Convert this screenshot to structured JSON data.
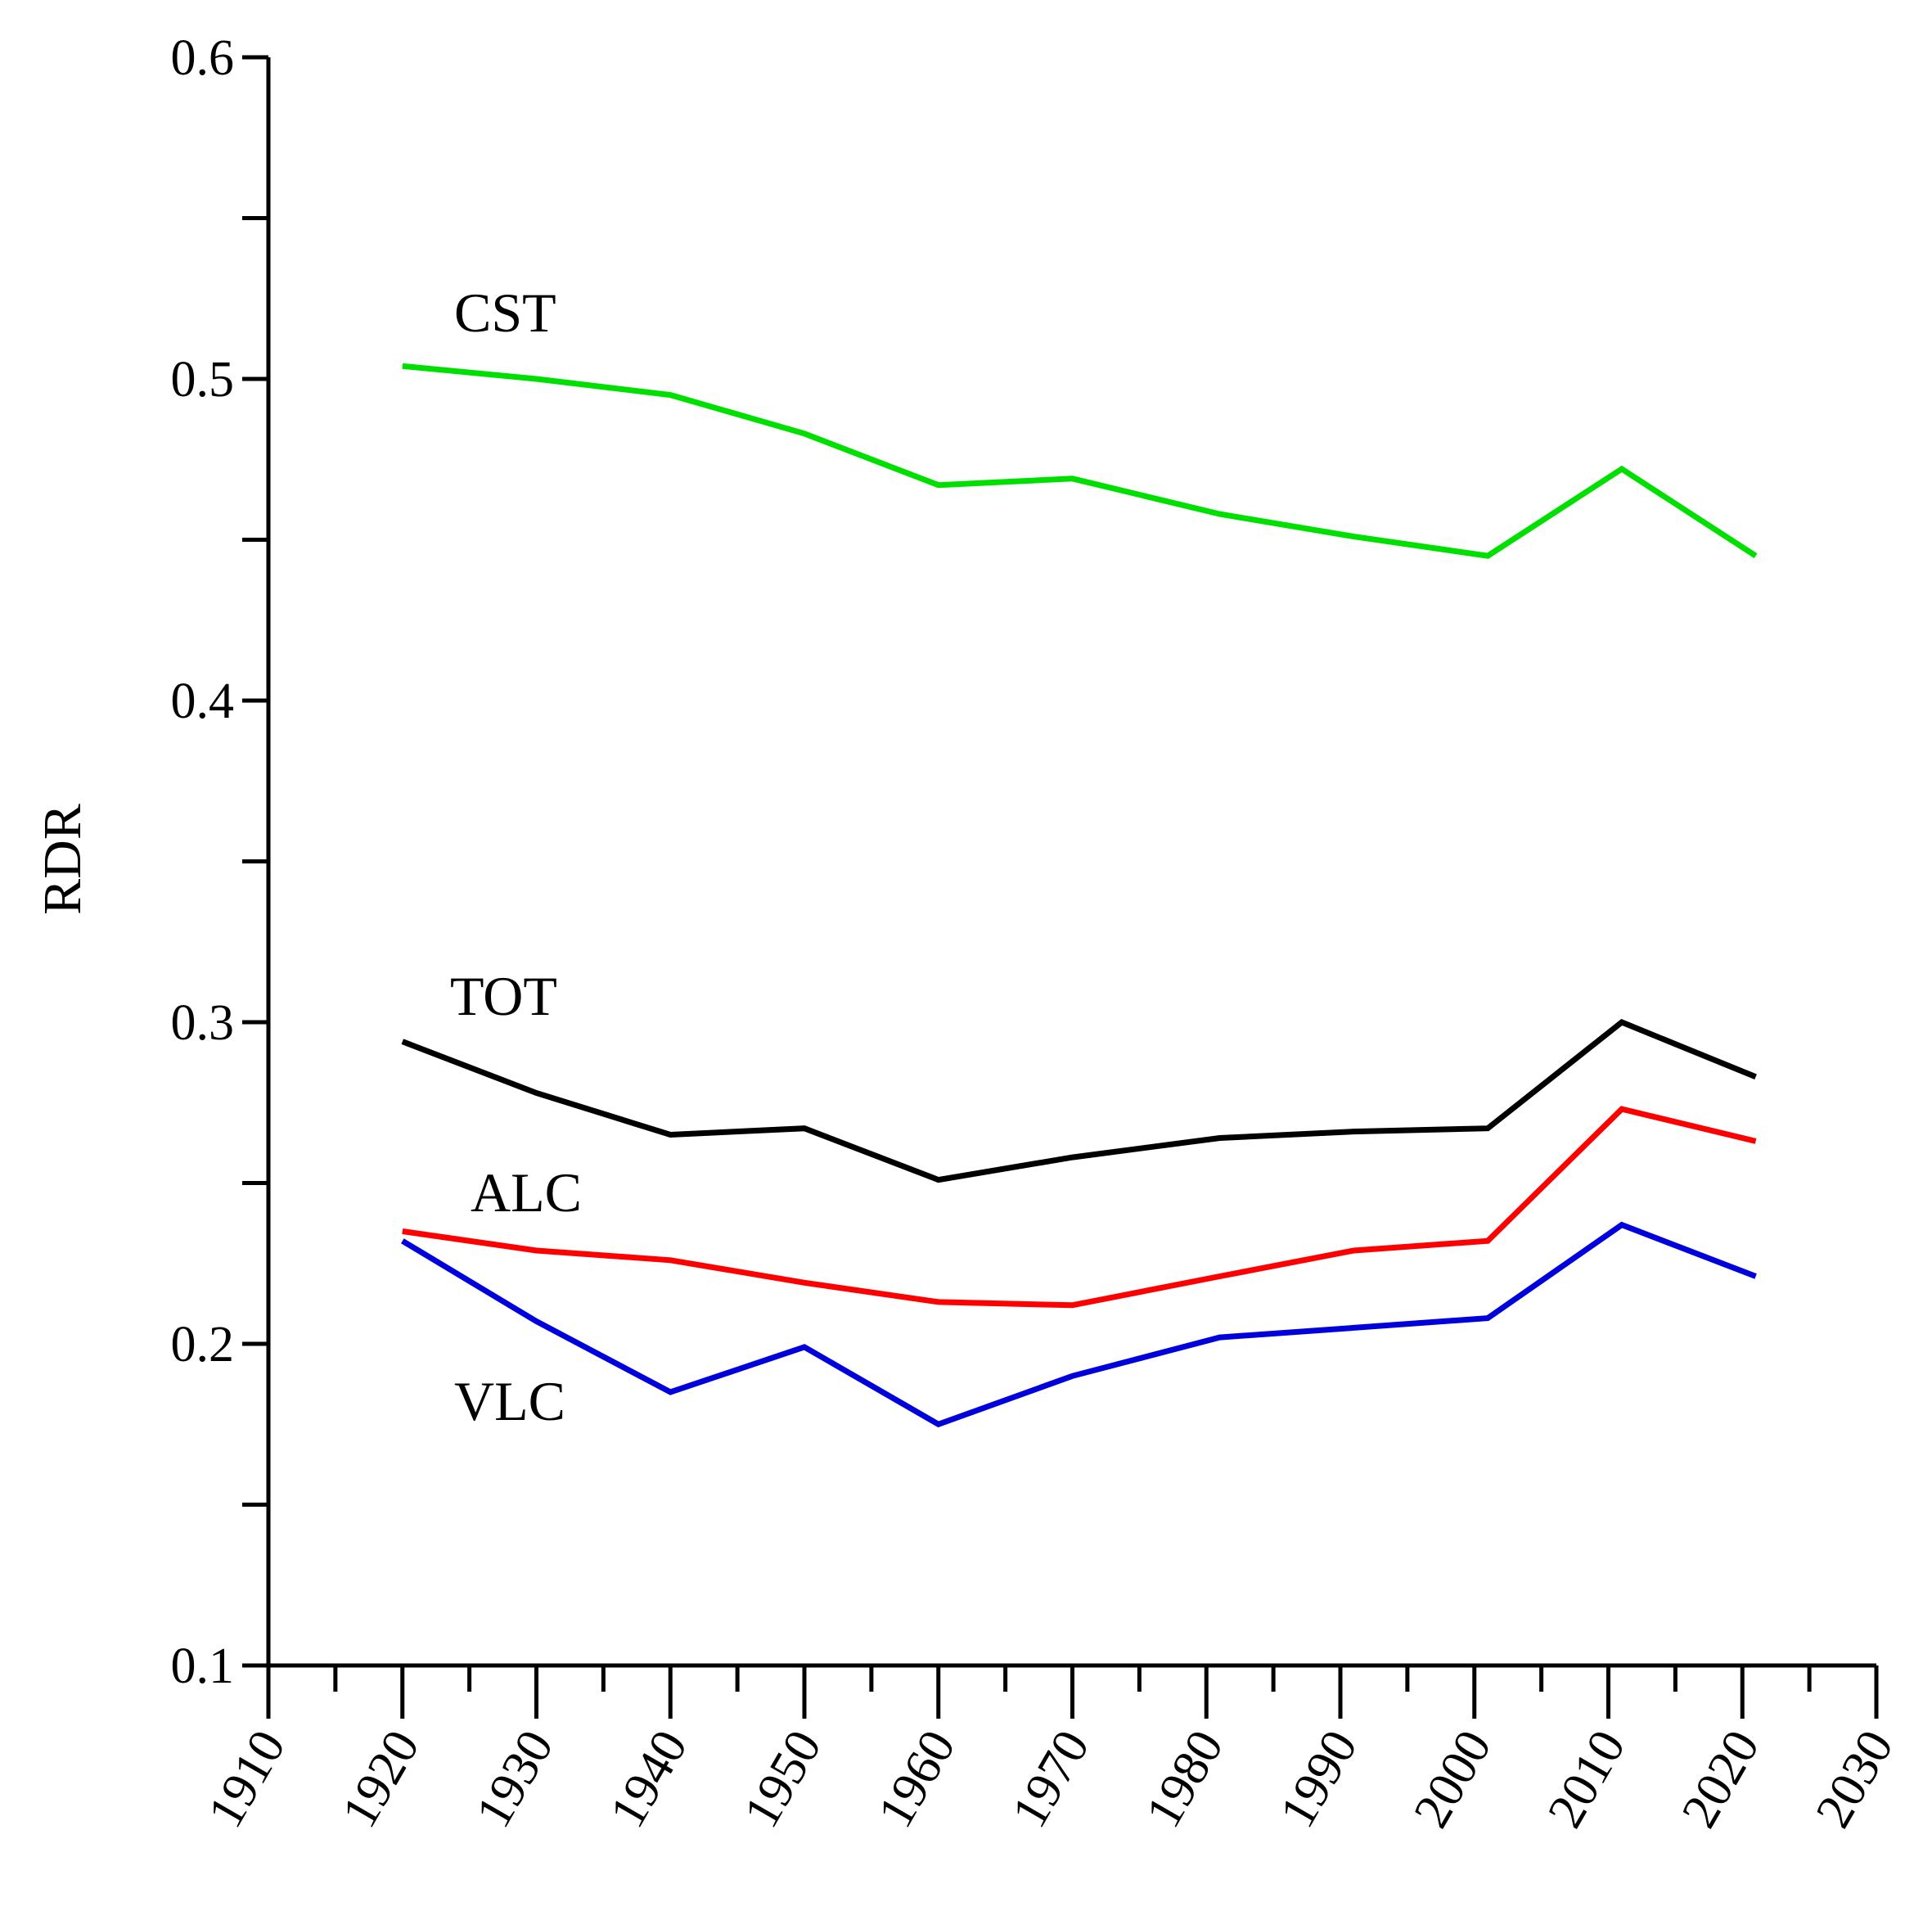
{
  "chart_data": {
    "type": "line",
    "title": "",
    "xlabel": "",
    "ylabel": "RDR",
    "xlim": [
      1910,
      2030
    ],
    "ylim": [
      0.1,
      0.6
    ],
    "x_ticks": [
      "1910",
      "1920",
      "1930",
      "1940",
      "1950",
      "1960",
      "1970",
      "1980",
      "1990",
      "2000",
      "2010",
      "2020",
      "2030"
    ],
    "y_tick_labels": [
      "0.1",
      "0.2",
      "0.3",
      "0.4",
      "0.5",
      "0.6"
    ],
    "grid": false,
    "legend": "inline labels",
    "series": [
      {
        "name": "CST",
        "color": "#00e000",
        "x": [
          1920,
          1930,
          1940,
          1950,
          1960,
          1970,
          1981,
          1991,
          2001,
          2011,
          2021
        ],
        "values": [
          0.504,
          0.5,
          0.495,
          0.483,
          0.467,
          0.469,
          0.458,
          0.451,
          0.445,
          0.472,
          0.445
        ]
      },
      {
        "name": "TOT",
        "color": "#000000",
        "x": [
          1920,
          1930,
          1940,
          1950,
          1960,
          1970,
          1981,
          1991,
          2001,
          2011,
          2021
        ],
        "values": [
          0.294,
          0.278,
          0.265,
          0.267,
          0.251,
          0.258,
          0.264,
          0.266,
          0.267,
          0.3,
          0.283
        ]
      },
      {
        "name": "ALC",
        "color": "#ff0000",
        "x": [
          1920,
          1930,
          1940,
          1950,
          1960,
          1970,
          1981,
          1991,
          2001,
          2011,
          2021
        ],
        "values": [
          0.235,
          0.229,
          0.226,
          0.219,
          0.213,
          0.212,
          0.221,
          0.229,
          0.232,
          0.273,
          0.263
        ]
      },
      {
        "name": "VLC",
        "color": "#0000dd",
        "x": [
          1920,
          1930,
          1940,
          1950,
          1960,
          1970,
          1981,
          1991,
          2001,
          2011,
          2021
        ],
        "values": [
          0.232,
          0.207,
          0.185,
          0.199,
          0.175,
          0.19,
          0.202,
          0.205,
          0.208,
          0.237,
          0.221
        ]
      }
    ]
  }
}
